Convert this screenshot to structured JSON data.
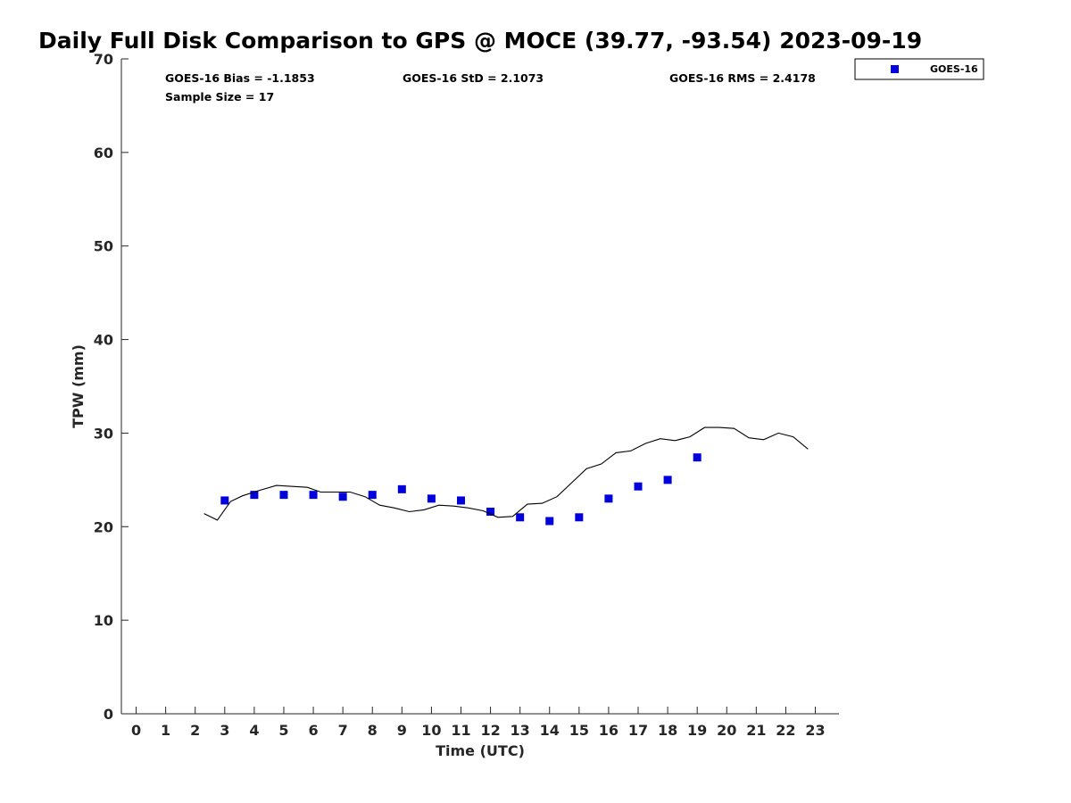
{
  "chart_data": {
    "type": "scatter",
    "title": "Daily Full Disk Comparison to GPS @ MOCE (39.77, -93.54) 2023-09-19",
    "xlabel": "Time (UTC)",
    "ylabel": "TPW (mm)",
    "xlim": [
      -0.5,
      23.8
    ],
    "ylim": [
      0,
      70
    ],
    "xticks": [
      0,
      1,
      2,
      3,
      4,
      5,
      6,
      7,
      8,
      9,
      10,
      11,
      12,
      13,
      14,
      15,
      16,
      17,
      18,
      19,
      20,
      21,
      22,
      23
    ],
    "yticks": [
      0,
      10,
      20,
      30,
      40,
      50,
      60,
      70
    ],
    "grid": false,
    "legend_position": "top-right",
    "stats": {
      "bias": "GOES-16 Bias = -1.1853",
      "std": "GOES-16 StD = 2.1073",
      "rms": "GOES-16 RMS = 2.4178",
      "sample_size": "Sample Size = 17"
    },
    "series": [
      {
        "name": "GOES-16",
        "kind": "scatter",
        "color": "#0000dd",
        "x": [
          3,
          4,
          5,
          6,
          7,
          8,
          9,
          10,
          11,
          12,
          13,
          14,
          15,
          16,
          17,
          18,
          19
        ],
        "y": [
          22.8,
          23.4,
          23.4,
          23.4,
          23.2,
          23.4,
          24.0,
          23.0,
          22.8,
          21.6,
          21.0,
          20.6,
          21.0,
          23.0,
          24.3,
          25.0,
          27.4
        ]
      },
      {
        "name": "GPS",
        "kind": "line",
        "color": "#000000",
        "x": [
          2.3,
          2.75,
          3.2,
          3.6,
          4.1,
          4.75,
          5.3,
          5.8,
          6.25,
          6.75,
          7.25,
          7.75,
          8.25,
          8.75,
          9.25,
          9.75,
          10.25,
          10.75,
          11.25,
          11.75,
          12.25,
          12.75,
          13.25,
          13.75,
          14.25,
          14.75,
          15.25,
          15.75,
          16.25,
          16.75,
          17.25,
          17.75,
          18.25,
          18.75,
          19.25,
          19.75,
          20.25,
          20.75,
          21.25,
          21.75,
          22.25,
          22.75
        ],
        "y": [
          21.4,
          20.7,
          22.7,
          23.3,
          23.8,
          24.4,
          24.3,
          24.2,
          23.7,
          23.7,
          23.7,
          23.2,
          22.3,
          22.0,
          21.6,
          21.8,
          22.3,
          22.2,
          22.0,
          21.7,
          21.0,
          21.1,
          22.4,
          22.5,
          23.2,
          24.7,
          26.2,
          26.7,
          27.9,
          28.1,
          28.9,
          29.4,
          29.2,
          29.6,
          30.6,
          30.6,
          30.5,
          29.5,
          29.3,
          30.0,
          29.6,
          28.3
        ]
      }
    ]
  }
}
